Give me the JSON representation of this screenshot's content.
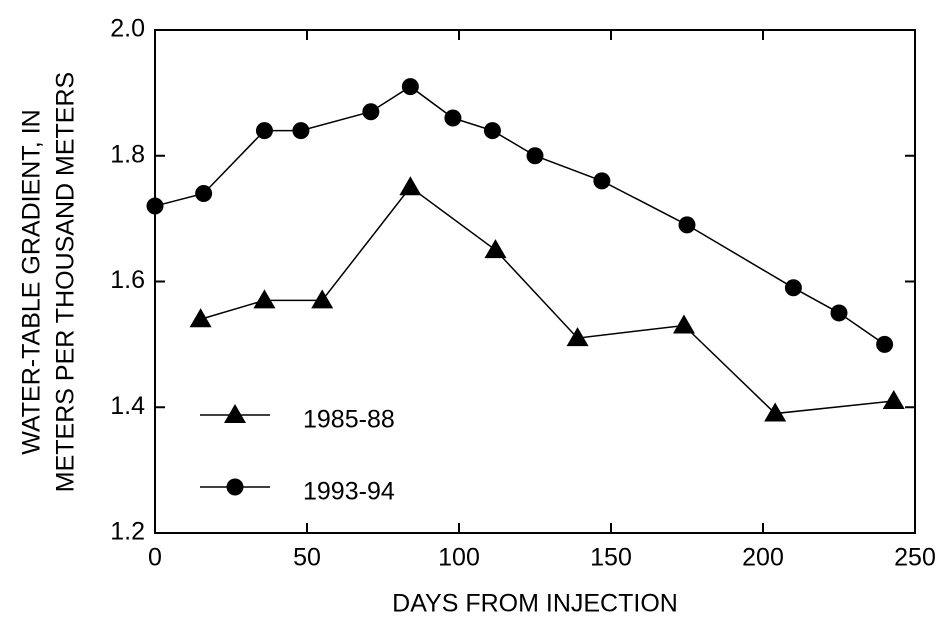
{
  "chart_data": {
    "type": "line",
    "xlabel": "DAYS FROM INJECTION",
    "ylabel": [
      "WATER-TABLE GRADIENT, IN",
      "METERS PER THOUSAND METERS"
    ],
    "xlim": [
      0,
      250
    ],
    "xticks": [
      0,
      50,
      100,
      150,
      200,
      250
    ],
    "ylim": [
      1.2,
      2.0
    ],
    "yticks": [
      1.2,
      1.4,
      1.6,
      1.8,
      {
        "value": 2.0,
        "label": "2.0"
      }
    ],
    "legend": "lower left",
    "series": [
      {
        "name": "1985-88",
        "color": "#000000",
        "marker": "triangle",
        "x": [
          15,
          36,
          55,
          84,
          112,
          139,
          174,
          204,
          243
        ],
        "values": [
          1.54,
          1.57,
          1.57,
          1.75,
          1.65,
          1.51,
          1.53,
          1.39,
          1.41
        ]
      },
      {
        "name": "1993-94",
        "color": "#000000",
        "marker": "circle",
        "x": [
          0,
          16,
          36,
          48,
          71,
          84,
          98,
          111,
          125,
          147,
          175,
          210,
          225,
          240
        ],
        "values": [
          1.72,
          1.74,
          1.84,
          1.84,
          1.87,
          1.91,
          1.86,
          1.84,
          1.8,
          1.76,
          1.69,
          1.59,
          1.55,
          1.5
        ]
      }
    ]
  }
}
